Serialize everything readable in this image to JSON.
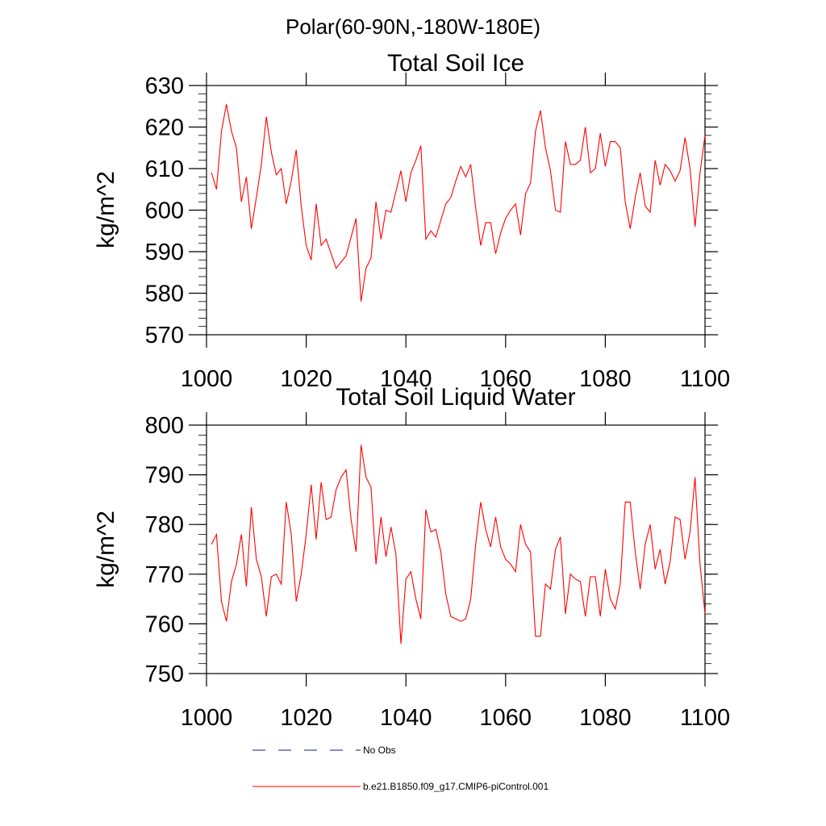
{
  "page_title": "Polar(60-90N,-180W-180E)",
  "colors": {
    "series": "#ff0000",
    "obs": "#1a1a8c",
    "axis": "#000000"
  },
  "chart_data": [
    {
      "type": "line",
      "title": "Total Soil Ice",
      "xlabel": "",
      "ylabel": "kg/m^2",
      "xlim": [
        1000,
        1100
      ],
      "ylim": [
        570,
        630
      ],
      "x_ticks": [
        1000,
        1020,
        1040,
        1060,
        1080,
        1100
      ],
      "y_ticks": [
        570,
        580,
        590,
        600,
        610,
        620,
        630
      ],
      "x_start": 1001,
      "series": [
        {
          "name": "b.e21.B1850.f09_g17.CMIP6-piControl.001",
          "color": "#ff0000",
          "values": [
            609,
            605,
            619,
            625.5,
            619,
            615,
            602,
            608,
            595.5,
            603,
            611,
            622.5,
            614,
            608.5,
            610,
            601.5,
            607,
            614.5,
            601,
            591.5,
            588,
            601.5,
            591.5,
            593,
            589.5,
            586,
            587.5,
            589,
            593.5,
            598,
            578,
            586,
            588.5,
            602,
            593,
            600,
            599.5,
            604.5,
            609.5,
            602,
            609,
            612,
            615.5,
            593,
            595,
            593.5,
            597.5,
            601.5,
            603,
            607,
            610.5,
            608,
            611,
            600.5,
            591.5,
            597,
            597,
            589.5,
            594.5,
            598,
            600,
            601.5,
            594,
            604,
            606.5,
            619,
            624,
            615,
            609.5,
            600,
            599.5,
            616.5,
            611,
            611,
            612,
            620,
            609,
            610,
            618.5,
            610.5,
            616.5,
            616.5,
            615,
            602,
            595.5,
            603,
            609,
            601,
            599.5,
            612,
            606,
            611,
            609.5,
            607,
            609.5,
            617.5,
            610,
            596,
            609,
            618
          ]
        }
      ]
    },
    {
      "type": "line",
      "title": "Total Soil Liquid Water",
      "xlabel": "",
      "ylabel": "kg/m^2",
      "xlim": [
        1000,
        1100
      ],
      "ylim": [
        750,
        800
      ],
      "x_ticks": [
        1000,
        1020,
        1040,
        1060,
        1080,
        1100
      ],
      "y_ticks": [
        750,
        760,
        770,
        780,
        790,
        800
      ],
      "x_start": 1001,
      "series": [
        {
          "name": "b.e21.B1850.f09_g17.CMIP6-piControl.001",
          "color": "#ff0000",
          "values": [
            776,
            778,
            764.5,
            760.5,
            768.5,
            772,
            778,
            767.5,
            783.5,
            773,
            769.5,
            761.5,
            769.5,
            770,
            768,
            784.5,
            778,
            764.5,
            770,
            778,
            788,
            777,
            788.5,
            781,
            781.5,
            787,
            789.5,
            791,
            781,
            774.5,
            796,
            789.5,
            787.5,
            772,
            781.5,
            773.5,
            779.5,
            774,
            756,
            769,
            770.5,
            765,
            761,
            783,
            778.5,
            779,
            774.5,
            766,
            761.5,
            761,
            760.5,
            761,
            765,
            776,
            784.5,
            779,
            775.5,
            781.5,
            775.5,
            773,
            772,
            770.5,
            780,
            776,
            774.5,
            757.5,
            757.5,
            768,
            767,
            775,
            777.5,
            762,
            770,
            769,
            768.5,
            761.5,
            769.5,
            769.5,
            761.5,
            771,
            765,
            763,
            768,
            784.5,
            784.5,
            774.5,
            767,
            776,
            780,
            771,
            775,
            768,
            772.5,
            781.5,
            781,
            773,
            778.5,
            789.5,
            772,
            762
          ]
        }
      ]
    }
  ],
  "legend": [
    {
      "label": "No Obs",
      "style": "dashed",
      "color": "#1a1a8c"
    },
    {
      "label": "b.e21.B1850.f09_g17.CMIP6-piControl.001",
      "style": "solid",
      "color": "#ff0000"
    }
  ]
}
